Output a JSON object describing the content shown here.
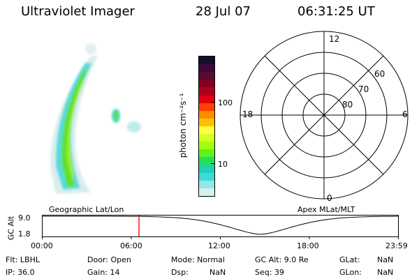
{
  "header": {
    "title": "Ultraviolet Imager",
    "date": "28 Jul 07",
    "time": "06:31:25 UT"
  },
  "colorbar": {
    "label": "photon cm⁻²s⁻¹",
    "ticks": [
      "100",
      "10"
    ],
    "colors_top_to_bottom": [
      "#1a0a2e",
      "#3a0a3a",
      "#5a0a30",
      "#800020",
      "#b00018",
      "#e00010",
      "#ff4000",
      "#ff8c00",
      "#ffc000",
      "#ffff40",
      "#d8ff20",
      "#a0ff10",
      "#60f020",
      "#20e060",
      "#20d0b0",
      "#40d8d8",
      "#90e8e8",
      "#d8f0f0"
    ]
  },
  "polar": {
    "mlt_labels": {
      "top": "12",
      "left": "18",
      "right": "6",
      "bottom": "0"
    },
    "lat_labels": [
      "60",
      "70",
      "80"
    ]
  },
  "timeline": {
    "left_title": "Geographic Lat/Lon",
    "right_title": "Apex MLat/MLT",
    "y_label": "GC Alt",
    "y_ticks": [
      "9.0",
      "1.8"
    ],
    "x_ticks": [
      "00:00",
      "06:00",
      "12:00",
      "18:00",
      "23:59"
    ],
    "marker_hours": 6.52,
    "marker_color": "#ff0000"
  },
  "info": {
    "row1": {
      "flt": "Flt:  LBHL",
      "door": "Door:  Open",
      "mode": "Mode:  Normal",
      "gcalt": "GC Alt:  9.0 Re",
      "glat": "GLat:",
      "glat_val": "NaN"
    },
    "row2": {
      "ip": "IP:  36.0",
      "gain": "Gain:  14",
      "dsp": "Dsp:",
      "dsp_val": "NaN",
      "seq": "Seq:  39",
      "glon": "GLon:",
      "glon_val": "NaN"
    }
  }
}
